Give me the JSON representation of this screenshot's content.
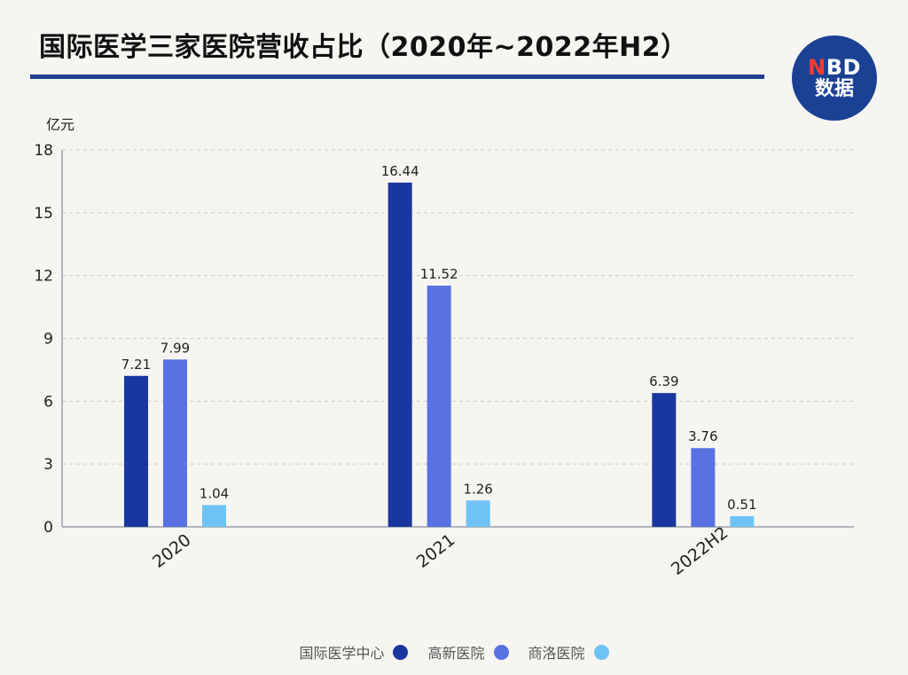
{
  "title": "国际医学三家医院营收占比（2020年~2022年H2）",
  "logo": {
    "line1_accent": "N",
    "line1_rest": "BD",
    "line2": "数据"
  },
  "chart_data": {
    "type": "bar",
    "title": "国际医学三家医院营收占比（2020年~2022年H2）",
    "ylabel": "亿元",
    "xlabel": "",
    "ylim": [
      0,
      18
    ],
    "yticks": [
      0,
      3,
      6,
      9,
      12,
      15,
      18
    ],
    "grid": true,
    "legend_position": "bottom",
    "categories": [
      "2020",
      "2021",
      "2022H2"
    ],
    "series": [
      {
        "name": "国际医学中心",
        "color": "#1a37a0",
        "values": [
          7.21,
          16.44,
          6.39
        ]
      },
      {
        "name": "高新医院",
        "color": "#5872e2",
        "values": [
          7.99,
          11.52,
          3.76
        ]
      },
      {
        "name": "商洛医院",
        "color": "#6fc2f5",
        "values": [
          1.04,
          1.26,
          0.51
        ]
      }
    ]
  }
}
